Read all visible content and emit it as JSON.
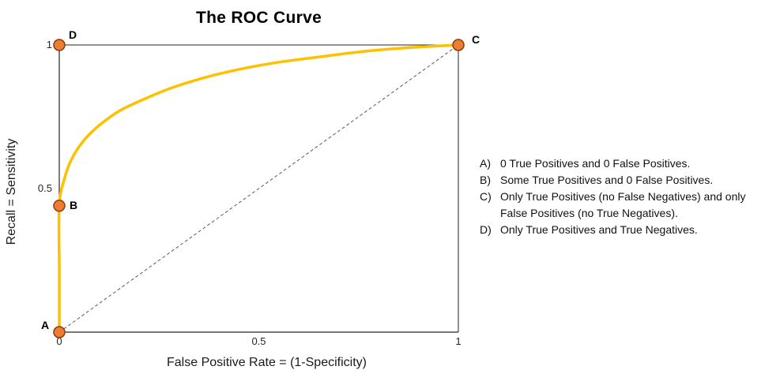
{
  "chart_data": {
    "type": "line",
    "title": "The ROC Curve",
    "xlabel": "False Positive Rate = (1-Specificity)",
    "ylabel": "Recall = Sensitivity",
    "xlim": [
      0,
      1
    ],
    "ylim": [
      0,
      1
    ],
    "x_ticks": [
      0,
      0.5,
      1
    ],
    "y_ticks": [
      0.5,
      1
    ],
    "grid": false,
    "legend": "none",
    "curve_color": "#FFC000",
    "diagonal_color": "#595959",
    "marker_color": "#ED7D31",
    "marker_stroke": "#843C0C",
    "axis_color": "#262626",
    "series": [
      {
        "name": "ROC curve",
        "style": "solid",
        "color": "#FFC000",
        "points": [
          [
            0,
            0
          ],
          [
            0,
            0.22
          ],
          [
            0,
            0.44
          ],
          [
            0.012,
            0.53
          ],
          [
            0.03,
            0.6
          ],
          [
            0.06,
            0.665
          ],
          [
            0.1,
            0.72
          ],
          [
            0.15,
            0.77
          ],
          [
            0.21,
            0.81
          ],
          [
            0.28,
            0.85
          ],
          [
            0.36,
            0.885
          ],
          [
            0.45,
            0.915
          ],
          [
            0.55,
            0.94
          ],
          [
            0.66,
            0.96
          ],
          [
            0.78,
            0.98
          ],
          [
            0.89,
            0.992
          ],
          [
            1,
            1
          ]
        ]
      },
      {
        "name": "chance diagonal",
        "style": "dashed",
        "color": "#595959",
        "points": [
          [
            0,
            0
          ],
          [
            1,
            1
          ]
        ]
      }
    ],
    "markers": [
      {
        "label": "A",
        "x": 0,
        "y": 0
      },
      {
        "label": "B",
        "x": 0,
        "y": 0.44
      },
      {
        "label": "C",
        "x": 1,
        "y": 1
      },
      {
        "label": "D",
        "x": 0,
        "y": 1
      }
    ],
    "annotations": [
      {
        "label": "A)",
        "text": "0 True Positives and 0 False Positives."
      },
      {
        "label": "B)",
        "text": "Some True Positives and 0 False Positives."
      },
      {
        "label": "C)",
        "text": "Only True Positives (no False Negatives) and only False Positives (no True Negatives)."
      },
      {
        "label": "D)",
        "text": "Only True Positives and True Negatives."
      }
    ]
  }
}
